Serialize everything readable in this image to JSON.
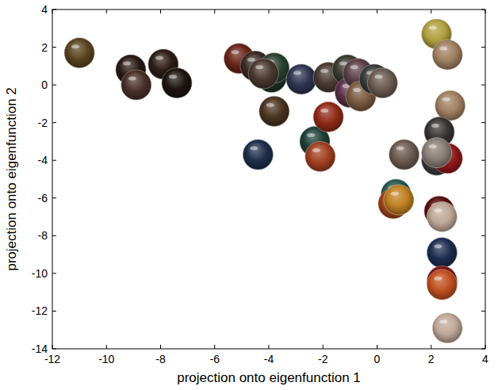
{
  "chart_data": {
    "type": "scatter",
    "x_label": "projection onto eigenfunction 1",
    "y_label": "projection onto eigenfunction 2",
    "xlim": [
      -12,
      4
    ],
    "xticks": [
      -12,
      -10,
      -8,
      -6,
      -4,
      -2,
      0,
      2,
      4
    ],
    "ylim": [
      -14,
      4
    ],
    "yticks": [
      -14,
      -12,
      -10,
      -8,
      -6,
      -4,
      -2,
      0,
      2,
      4
    ],
    "marker": "sphere",
    "x": [
      -11,
      -9.1,
      -8.9,
      -7.9,
      -7.4,
      -5.1,
      -4.5,
      -3.9,
      -3.8,
      -4.2,
      -3.8,
      -4.4,
      -2.8,
      -2.3,
      -2.1,
      -1.8,
      -1.8,
      -1.1,
      -1.0,
      -0.7,
      -0.6,
      -0.1,
      0.2,
      1.0,
      0.7,
      0.6,
      0.8,
      2.2,
      2.6,
      2.7,
      2.3,
      2.2,
      2.6,
      2.2,
      2.3,
      2.4,
      2.4,
      2.4,
      2.4,
      2.6
    ],
    "values": [
      1.7,
      0.8,
      0.0,
      1.1,
      0.1,
      1.4,
      1.0,
      0.4,
      0.9,
      0.6,
      -1.4,
      -3.7,
      0.3,
      -3.0,
      -3.8,
      -1.7,
      0.4,
      0.8,
      -0.4,
      0.6,
      -0.6,
      0.3,
      0.1,
      -3.7,
      -5.8,
      -6.3,
      -6.1,
      2.7,
      1.6,
      -1.1,
      -2.5,
      -4.0,
      -3.9,
      -3.6,
      -6.7,
      -7.0,
      -8.9,
      -10.4,
      -10.6,
      -12.9
    ],
    "colors": [
      "#5a4420",
      "#2a1a14",
      "#4a3028",
      "#2b1c16",
      "#1c1410",
      "#6a2418",
      "#3a2a24",
      "#203024",
      "#2a4030",
      "#4a3830",
      "#4a3420",
      "#1e2e4a",
      "#2e3450",
      "#1e4038",
      "#a04020",
      "#902a18",
      "#4a3a34",
      "#3a3a30",
      "#5a3048",
      "#5a4048",
      "#7a5a40",
      "#3a3a3a",
      "#6a5a50",
      "#6a5a50",
      "#2a5a50",
      "#a04418",
      "#c08020",
      "#b0a040",
      "#a08060",
      "#a08060",
      "#3a3434",
      "#3a3a3a",
      "#901818",
      "#8a8078",
      "#5a1010",
      "#c0a898",
      "#1e2e50",
      "#801818",
      "#c05020",
      "#c0a898"
    ]
  }
}
